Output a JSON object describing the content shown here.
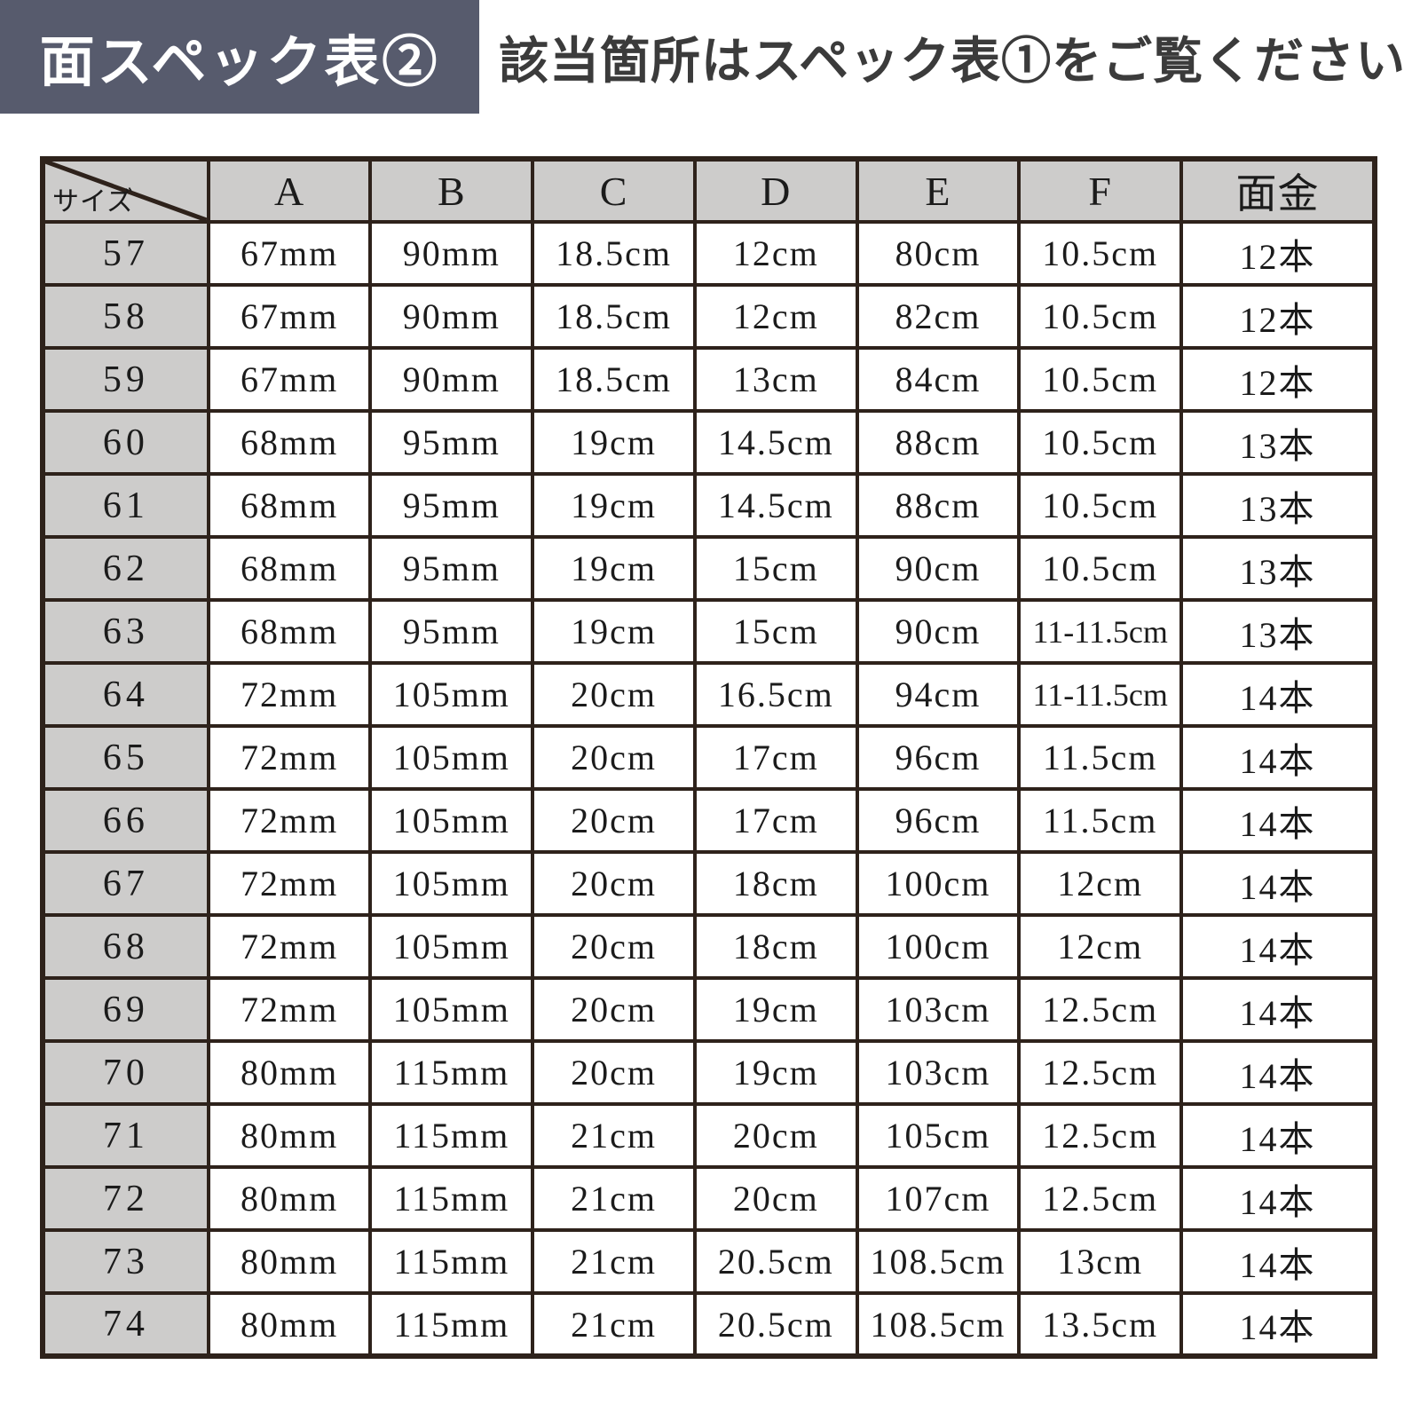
{
  "header": {
    "title": "面スペック表②",
    "subtitle": "該当箇所はスペック表①をご覧ください"
  },
  "colors": {
    "title_bg": "#575b6d",
    "title_text": "#ffffff",
    "subtitle_text": "#3b3b3b",
    "header_cell_bg": "#cdcccb",
    "data_cell_bg": "#ffffff",
    "table_border": "#2e221b",
    "text": "#1b1b1b"
  },
  "table": {
    "corner_label": "サイズ",
    "columns": [
      "A",
      "B",
      "C",
      "D",
      "E",
      "F",
      "面金"
    ],
    "rows": [
      {
        "size": "57",
        "values": [
          "67mm",
          "90mm",
          "18.5cm",
          "12cm",
          "80cm",
          "10.5cm",
          "12本"
        ]
      },
      {
        "size": "58",
        "values": [
          "67mm",
          "90mm",
          "18.5cm",
          "12cm",
          "82cm",
          "10.5cm",
          "12本"
        ]
      },
      {
        "size": "59",
        "values": [
          "67mm",
          "90mm",
          "18.5cm",
          "13cm",
          "84cm",
          "10.5cm",
          "12本"
        ]
      },
      {
        "size": "60",
        "values": [
          "68mm",
          "95mm",
          "19cm",
          "14.5cm",
          "88cm",
          "10.5cm",
          "13本"
        ]
      },
      {
        "size": "61",
        "values": [
          "68mm",
          "95mm",
          "19cm",
          "14.5cm",
          "88cm",
          "10.5cm",
          "13本"
        ]
      },
      {
        "size": "62",
        "values": [
          "68mm",
          "95mm",
          "19cm",
          "15cm",
          "90cm",
          "10.5cm",
          "13本"
        ]
      },
      {
        "size": "63",
        "values": [
          "68mm",
          "95mm",
          "19cm",
          "15cm",
          "90cm",
          "11-11.5cm",
          "13本"
        ]
      },
      {
        "size": "64",
        "values": [
          "72mm",
          "105mm",
          "20cm",
          "16.5cm",
          "94cm",
          "11-11.5cm",
          "14本"
        ]
      },
      {
        "size": "65",
        "values": [
          "72mm",
          "105mm",
          "20cm",
          "17cm",
          "96cm",
          "11.5cm",
          "14本"
        ]
      },
      {
        "size": "66",
        "values": [
          "72mm",
          "105mm",
          "20cm",
          "17cm",
          "96cm",
          "11.5cm",
          "14本"
        ]
      },
      {
        "size": "67",
        "values": [
          "72mm",
          "105mm",
          "20cm",
          "18cm",
          "100cm",
          "12cm",
          "14本"
        ]
      },
      {
        "size": "68",
        "values": [
          "72mm",
          "105mm",
          "20cm",
          "18cm",
          "100cm",
          "12cm",
          "14本"
        ]
      },
      {
        "size": "69",
        "values": [
          "72mm",
          "105mm",
          "20cm",
          "19cm",
          "103cm",
          "12.5cm",
          "14本"
        ]
      },
      {
        "size": "70",
        "values": [
          "80mm",
          "115mm",
          "20cm",
          "19cm",
          "103cm",
          "12.5cm",
          "14本"
        ]
      },
      {
        "size": "71",
        "values": [
          "80mm",
          "115mm",
          "21cm",
          "20cm",
          "105cm",
          "12.5cm",
          "14本"
        ]
      },
      {
        "size": "72",
        "values": [
          "80mm",
          "115mm",
          "21cm",
          "20cm",
          "107cm",
          "12.5cm",
          "14本"
        ]
      },
      {
        "size": "73",
        "values": [
          "80mm",
          "115mm",
          "21cm",
          "20.5cm",
          "108.5cm",
          "13cm",
          "14本"
        ]
      },
      {
        "size": "74",
        "values": [
          "80mm",
          "115mm",
          "21cm",
          "20.5cm",
          "108.5cm",
          "13.5cm",
          "14本"
        ]
      }
    ]
  }
}
